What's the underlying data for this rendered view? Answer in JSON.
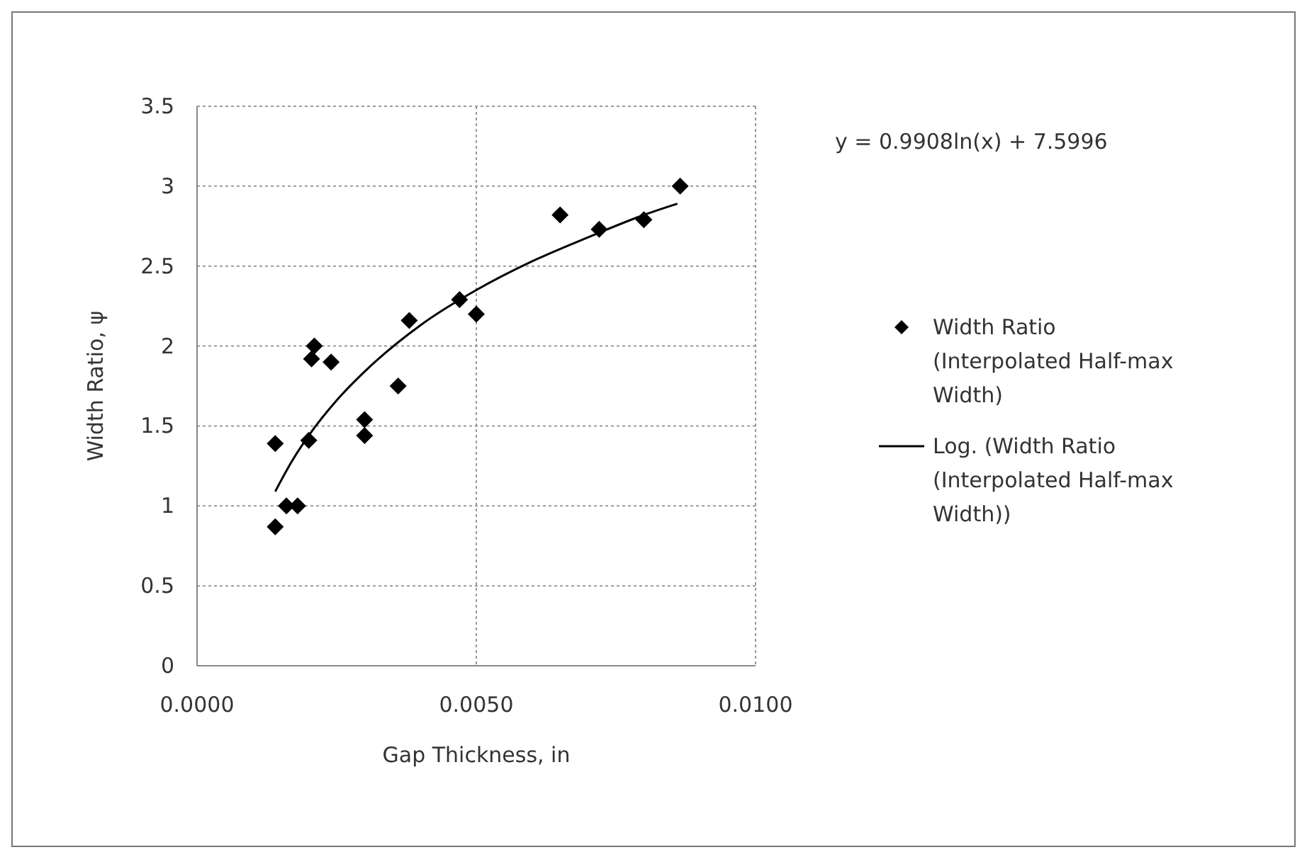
{
  "chart_data": {
    "type": "scatter",
    "xlabel": "Gap Thickness, in",
    "ylabel": "Width Ratio, ψ",
    "annotations": [
      "y = 0.9908ln(x) + 7.5996"
    ],
    "xlim": [
      0,
      0.01
    ],
    "xticks": [
      {
        "value": 0,
        "label": "0.0000"
      },
      {
        "value": 0.005,
        "label": "0.0050"
      },
      {
        "value": 0.01,
        "label": "0.0100"
      }
    ],
    "ylim": [
      0,
      3.5
    ],
    "yticks": [
      0,
      0.5,
      1,
      1.5,
      2,
      2.5,
      3,
      3.5
    ],
    "grid": true,
    "legend": "right",
    "series": [
      {
        "name": "Width Ratio (Interpolated Half-max Width)",
        "marker": "diamond",
        "color": "#000000",
        "x": [
          0.0014,
          0.0014,
          0.0016,
          0.0018,
          0.002,
          0.00205,
          0.0021,
          0.0024,
          0.003,
          0.003,
          0.0036,
          0.0038,
          0.0047,
          0.005,
          0.0065,
          0.0072,
          0.008,
          0.00865
        ],
        "values": [
          1.39,
          0.87,
          1.0,
          1.0,
          1.41,
          1.92,
          2.0,
          1.9,
          1.54,
          1.44,
          1.75,
          2.16,
          2.29,
          2.2,
          2.82,
          2.73,
          2.79,
          3.0
        ]
      },
      {
        "name": "Log. (Width Ratio (Interpolated Half-max Width))",
        "type": "line",
        "marker": "none",
        "color": "#000000",
        "line_style": "solid",
        "x": [
          0.0014,
          0.0017,
          0.002,
          0.0025,
          0.003,
          0.004,
          0.005,
          0.006,
          0.007,
          0.008,
          0.0086
        ],
        "values": [
          1.09,
          1.28,
          1.44,
          1.66,
          1.84,
          2.13,
          2.35,
          2.53,
          2.68,
          2.82,
          2.89
        ]
      }
    ]
  }
}
